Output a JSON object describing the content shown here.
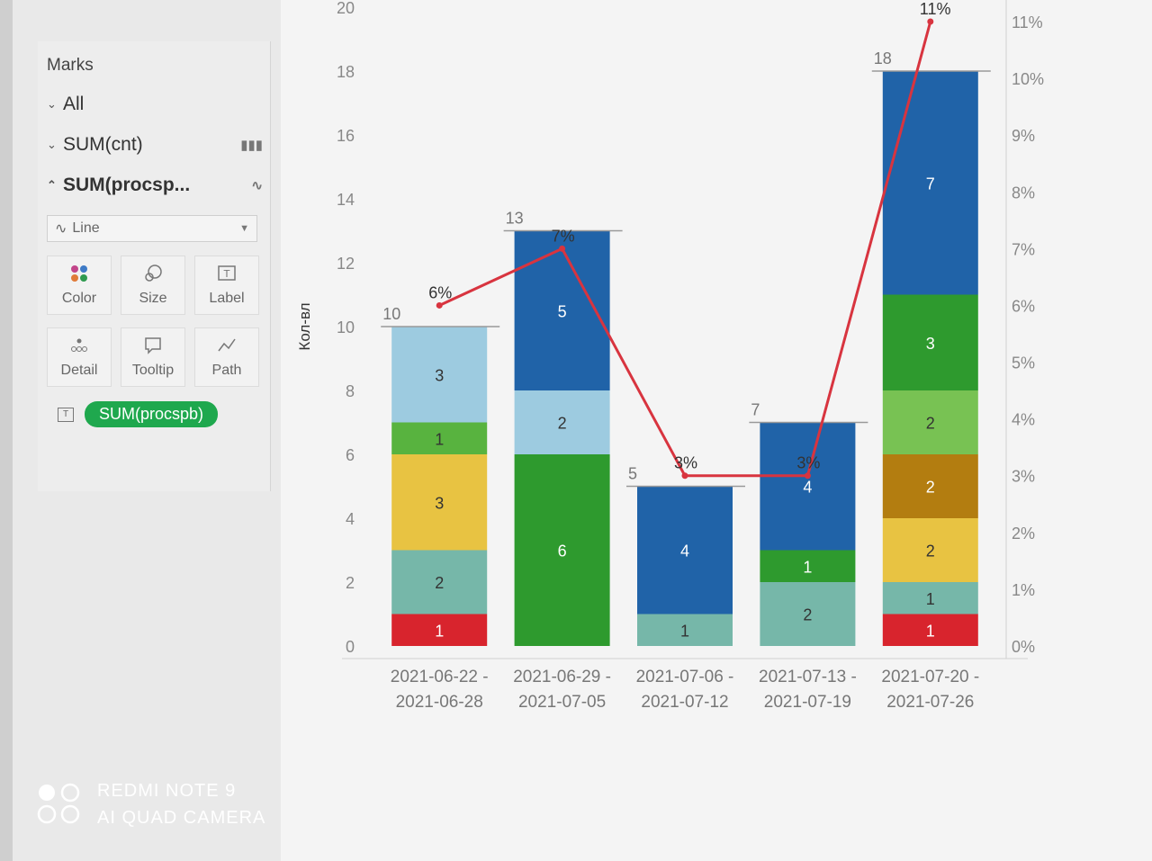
{
  "marks": {
    "title": "Marks",
    "rows": [
      {
        "label": "All"
      },
      {
        "label": "SUM(cnt)"
      },
      {
        "label": "SUM(procsp..."
      }
    ],
    "mark_type": "Line",
    "tiles": [
      "Color",
      "Size",
      "Label",
      "Detail",
      "Tooltip",
      "Path"
    ],
    "pill": "SUM(procspb)"
  },
  "watermark": {
    "line1": "REDMI NOTE 9",
    "line2": "AI QUAD CAMERA"
  },
  "chart_data": {
    "type": "bar",
    "subtype": "stacked bar with line on secondary axis",
    "ylabel": "Кол-вл",
    "ylim": [
      0,
      20
    ],
    "yticks": [
      0,
      2,
      4,
      6,
      8,
      10,
      12,
      14,
      16,
      18,
      20
    ],
    "y2lim": [
      0,
      11
    ],
    "y2ticks": [
      "0%",
      "1%",
      "2%",
      "3%",
      "4%",
      "5%",
      "6%",
      "7%",
      "8%",
      "9%",
      "10%",
      "11%"
    ],
    "categories": [
      [
        "2021-06-22 -",
        "2021-06-28"
      ],
      [
        "2021-06-29 -",
        "2021-07-05"
      ],
      [
        "2021-07-06 -",
        "2021-07-12"
      ],
      [
        "2021-07-13 -",
        "2021-07-19"
      ],
      [
        "2021-07-20 -",
        "2021-07-26"
      ]
    ],
    "stacks": [
      [
        {
          "v": 1,
          "color": "#d8242d"
        },
        {
          "v": 2,
          "color": "#76b7a9"
        },
        {
          "v": 3,
          "color": "#e8c342"
        },
        {
          "v": 1,
          "color": "#58b33f"
        },
        {
          "v": 3,
          "color": "#9dcbe0"
        }
      ],
      [
        {
          "v": 6,
          "color": "#2e9a2e"
        },
        {
          "v": 2,
          "color": "#9dcbe0"
        },
        {
          "v": 5,
          "color": "#2063a8"
        }
      ],
      [
        {
          "v": 1,
          "color": "#76b7a9"
        },
        {
          "v": 4,
          "color": "#2063a8"
        }
      ],
      [
        {
          "v": 2,
          "color": "#76b7a9"
        },
        {
          "v": 1,
          "color": "#2e9a2e"
        },
        {
          "v": 4,
          "color": "#2063a8"
        }
      ],
      [
        {
          "v": 1,
          "color": "#d8242d"
        },
        {
          "v": 1,
          "color": "#76b7a9"
        },
        {
          "v": 2,
          "color": "#e8c342"
        },
        {
          "v": 2,
          "color": "#b37d10"
        },
        {
          "v": 2,
          "color": "#78c253"
        },
        {
          "v": 3,
          "color": "#2e9a2e"
        },
        {
          "v": 7,
          "color": "#2063a8"
        }
      ]
    ],
    "totals": [
      10,
      13,
      5,
      7,
      18
    ],
    "line": {
      "color": "#d8343f",
      "values": [
        6,
        7,
        3,
        3,
        11
      ],
      "labels": [
        "6%",
        "7%",
        "3%",
        "3%",
        "11%"
      ]
    }
  }
}
